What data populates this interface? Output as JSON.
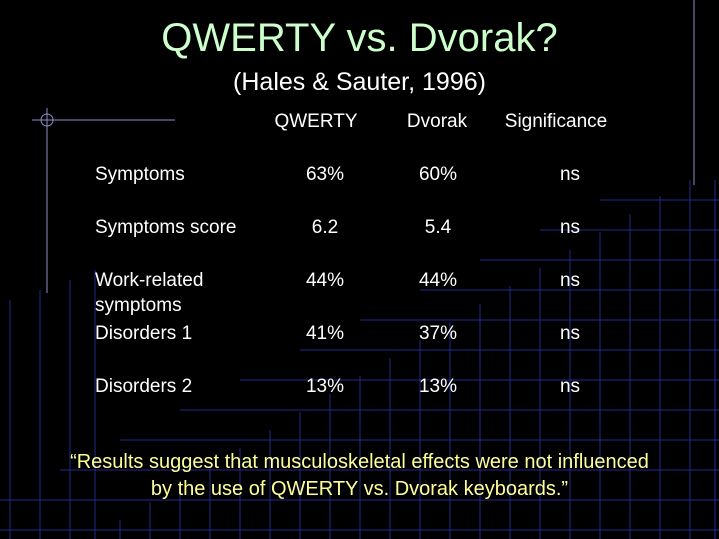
{
  "slide": {
    "title": "QWERTY vs. Dvorak?",
    "subtitle": "(Hales & Sauter, 1996)",
    "footer_line1": "“Results suggest that musculoskeletal effects were not influenced",
    "footer_line2": "by the use of QWERTY vs. Dvorak keyboards.”"
  },
  "table": {
    "columns": [
      "QWERTY",
      "Dvorak",
      "Significance"
    ],
    "rows": [
      {
        "label": "Symptoms",
        "label2": "",
        "qwerty": "63%",
        "dvorak": "60%",
        "significance": "ns"
      },
      {
        "label": "Symptoms score",
        "label2": "",
        "qwerty": "6.2",
        "dvorak": "5.4",
        "significance": "ns"
      },
      {
        "label": "Work-related",
        "label2": "symptoms",
        "qwerty": "44%",
        "dvorak": "44%",
        "significance": "ns"
      },
      {
        "label": "Disorders 1",
        "label2": "",
        "qwerty": "41%",
        "dvorak": "37%",
        "significance": "ns"
      },
      {
        "label": "Disorders 2",
        "label2": "",
        "qwerty": "13%",
        "dvorak": "13%",
        "significance": "ns"
      }
    ]
  },
  "colors": {
    "background": "#000000",
    "grid": "#1f2a8a",
    "title": "#ccffcc",
    "text": "#ffffff",
    "footer": "#ffff99"
  }
}
